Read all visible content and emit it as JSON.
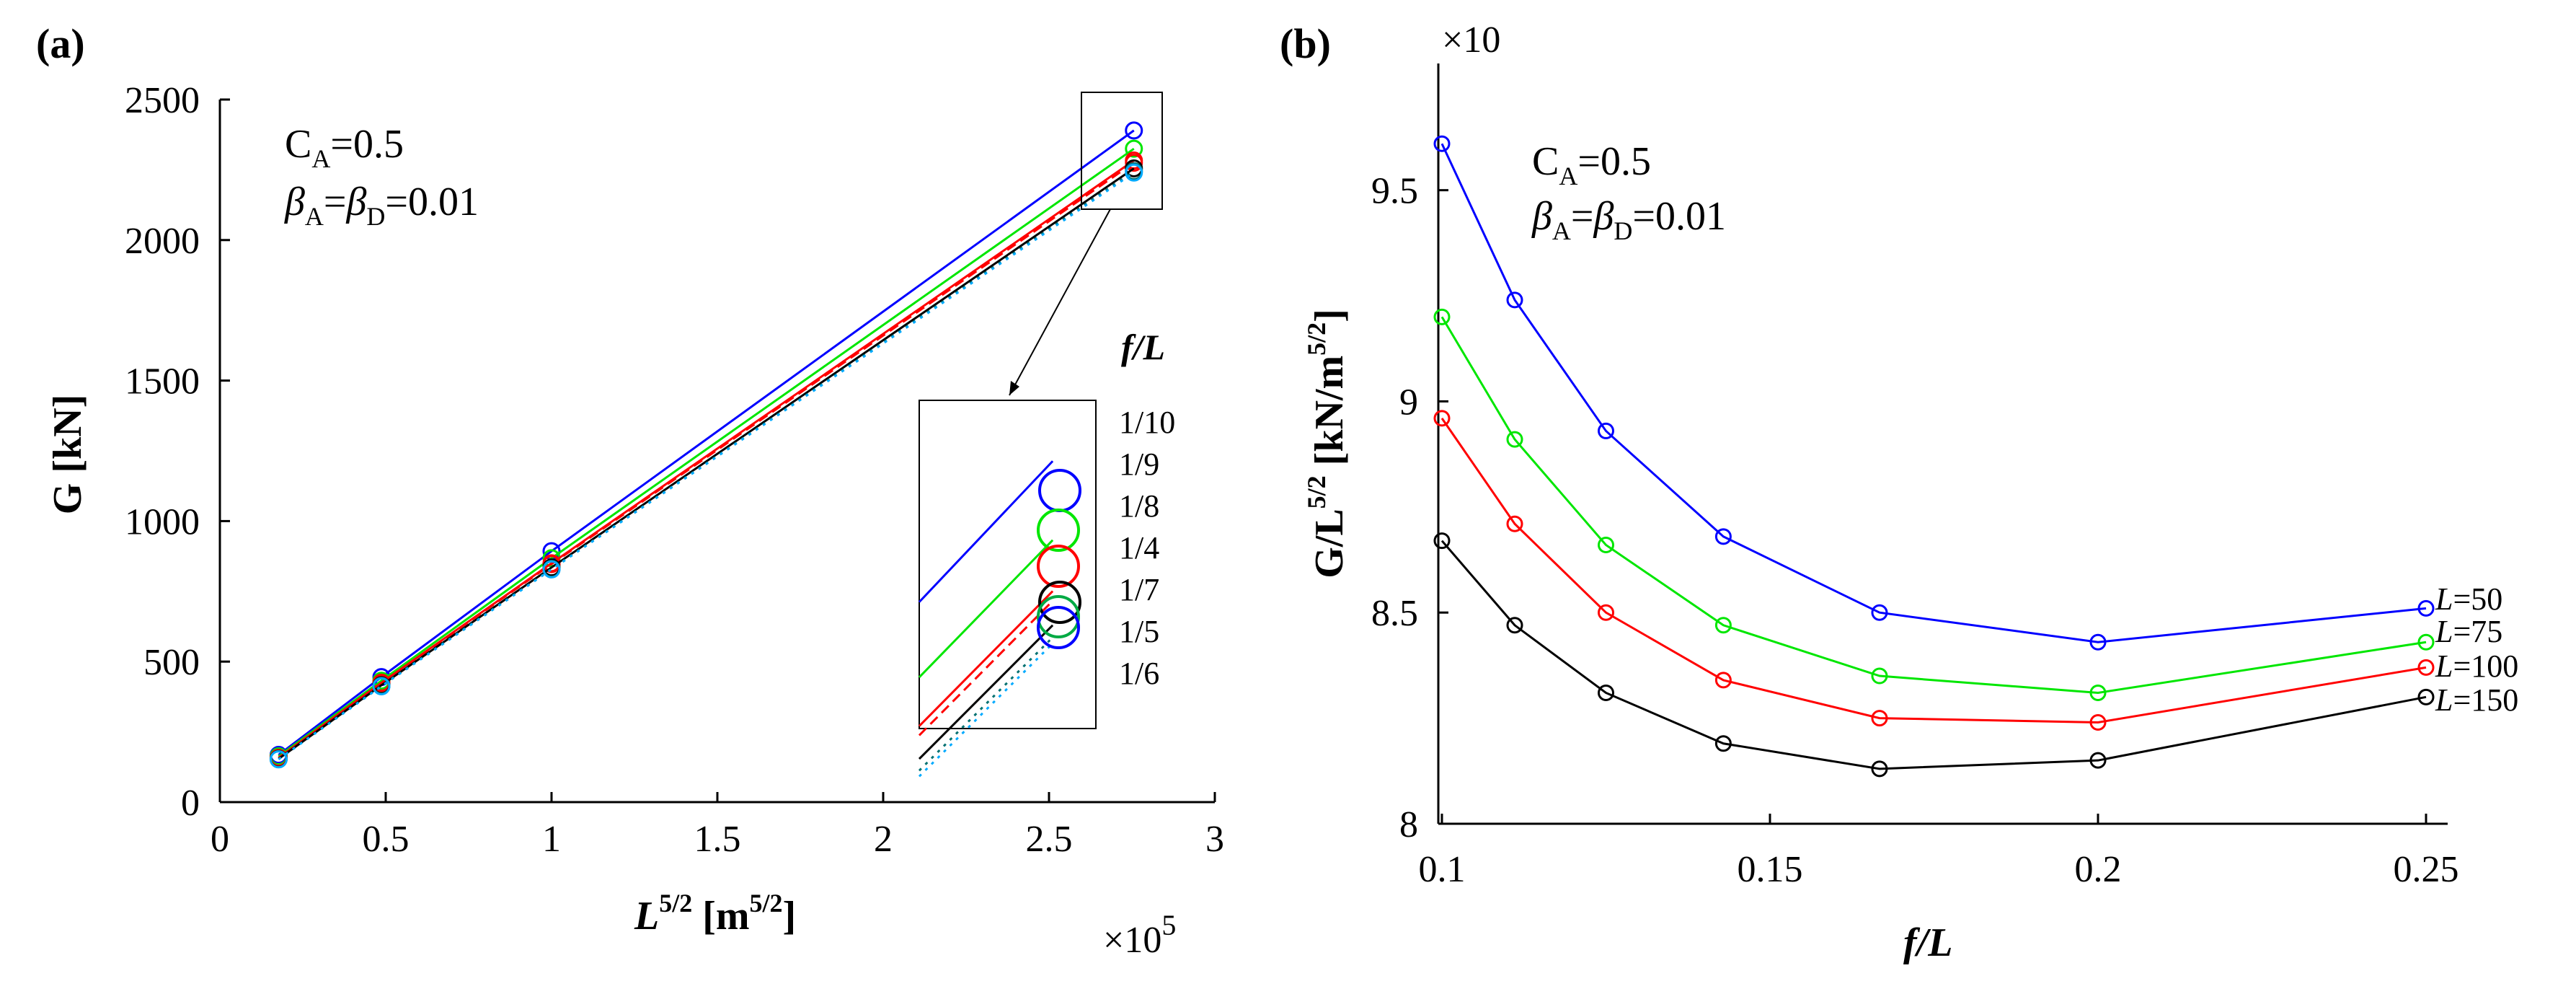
{
  "chart_data": [
    {
      "panel": "(a)",
      "type": "line",
      "title": "",
      "xlabel_main": "L",
      "xlabel_sup": "5/2",
      "xlabel_unit": "[m",
      "xlabel_unit_sup": "5/2",
      "xlabel_close": "]",
      "ylabel": "G [kN]",
      "xlim": [
        0,
        3
      ],
      "ylim": [
        0,
        2500
      ],
      "xticks": [
        0,
        0.5,
        1,
        1.5,
        2,
        2.5,
        3
      ],
      "xtick_labels": [
        "0",
        "0.5",
        "1",
        "1.5",
        "2",
        "2.5",
        "3"
      ],
      "yticks": [
        0,
        500,
        1000,
        1500,
        2000,
        2500
      ],
      "ytick_labels": [
        "0",
        "500",
        "1000",
        "1500",
        "2000",
        "2500"
      ],
      "x_multiplier": "×10",
      "x_multiplier_exp": "5",
      "annotation_line1": "C",
      "annotation_line1_sub": "A",
      "annotation_line1_rest": "=0.5",
      "annotation_line2_b1": "β",
      "annotation_line2_sub1": "A",
      "annotation_line2_mid": "=",
      "annotation_line2_b2": "β",
      "annotation_line2_sub2": "D",
      "annotation_line2_rest": "=0.01",
      "legend_title": "f/L",
      "x": [
        0.177,
        0.487,
        1.0,
        2.756
      ],
      "series": [
        {
          "name": "1/10",
          "color": "#0000ff",
          "style": "solid",
          "values": [
            168,
            445,
            893,
            2390
          ]
        },
        {
          "name": "1/9",
          "color": "#00e600",
          "style": "solid",
          "values": [
            163,
            432,
            868,
            2325
          ]
        },
        {
          "name": "1/8",
          "color": "#ff0000",
          "style": "solid",
          "values": [
            158,
            425,
            850,
            2283
          ]
        },
        {
          "name": "1/4",
          "color": "#ff0000",
          "style": "dashed",
          "values": [
            157,
            423,
            847,
            2275
          ]
        },
        {
          "name": "1/7",
          "color": "#000000",
          "style": "solid",
          "values": [
            154,
            416,
            835,
            2255
          ]
        },
        {
          "name": "1/5",
          "color": "#007070",
          "style": "dotted",
          "values": [
            153,
            414,
            830,
            2245
          ]
        },
        {
          "name": "1/6",
          "color": "#00aaff",
          "style": "dotted",
          "values": [
            152,
            412,
            828,
            2240
          ]
        }
      ],
      "inset_legend_colors": [
        "#0000ff",
        "#00e600",
        "#ff0000",
        "#000000",
        "#00aa44",
        "#0000ff"
      ]
    },
    {
      "panel": "(b)",
      "type": "line",
      "title": "",
      "xlabel": "f/L",
      "ylabel_main": "G/L",
      "ylabel_sup": "5/2",
      "ylabel_unit": " [kN/m",
      "ylabel_unit_sup": "5/2",
      "ylabel_close": "]",
      "xlim": [
        0.1,
        0.25
      ],
      "ylim": [
        8.0,
        9.8
      ],
      "xticks": [
        0.1,
        0.15,
        0.2,
        0.25
      ],
      "xtick_labels": [
        "0.1",
        "0.15",
        "0.2",
        "0.25"
      ],
      "yticks": [
        8,
        8.5,
        9,
        9.5
      ],
      "ytick_labels": [
        "8",
        "8.5",
        "9",
        "9.5"
      ],
      "y_multiplier": "×10",
      "annotation_line1": "C",
      "annotation_line1_sub": "A",
      "annotation_line1_rest": "=0.5",
      "annotation_line2_b1": "β",
      "annotation_line2_sub1": "A",
      "annotation_line2_mid": "=",
      "annotation_line2_b2": "β",
      "annotation_line2_sub2": "D",
      "annotation_line2_rest": "=0.01",
      "x": [
        0.1,
        0.1111,
        0.125,
        0.1429,
        0.1667,
        0.2,
        0.25
      ],
      "series": [
        {
          "name": "L=50",
          "label_var": "L",
          "label_val": "=50",
          "color": "#0000ff",
          "values": [
            9.61,
            9.24,
            8.93,
            8.68,
            8.5,
            8.43,
            8.51
          ]
        },
        {
          "name": "L=75",
          "label_var": "L",
          "label_val": "=75",
          "color": "#00e600",
          "values": [
            9.2,
            8.91,
            8.66,
            8.47,
            8.35,
            8.31,
            8.43
          ]
        },
        {
          "name": "L=100",
          "label_var": "L",
          "label_val": "=100",
          "color": "#ff0000",
          "values": [
            8.96,
            8.71,
            8.5,
            8.34,
            8.25,
            8.24,
            8.37
          ]
        },
        {
          "name": "L=150",
          "label_var": "L",
          "label_val": "=150",
          "color": "#000000",
          "values": [
            8.67,
            8.47,
            8.31,
            8.19,
            8.13,
            8.15,
            8.3
          ]
        }
      ]
    }
  ]
}
